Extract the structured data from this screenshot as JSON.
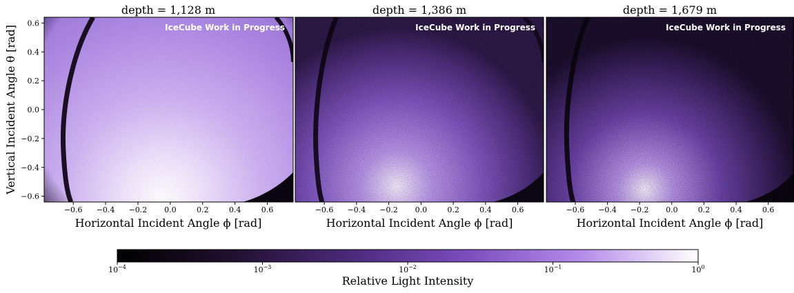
{
  "chart_data": {
    "type": "heatmap",
    "panels": [
      {
        "title": "depth = 1,128 m",
        "watermark": "IceCube Work in Progress",
        "xlabel": "Horizontal Incident Angle ϕ [rad]",
        "ylabel": "Vertical Incident Angle θ [rad]",
        "xlim": [
          -0.78,
          0.76
        ],
        "ylim": [
          -0.64,
          0.64
        ],
        "xticks": [
          "−0.6",
          "−0.4",
          "−0.2",
          "0.0",
          "0.2",
          "0.4",
          "0.6"
        ],
        "yticks": [
          "−0.6",
          "−0.4",
          "−0.2",
          "0.0",
          "0.2",
          "0.4",
          "0.6"
        ],
        "peak_x": -0.12,
        "peak_y": -0.55,
        "background_intensity": 0.3
      },
      {
        "title": "depth = 1,386 m",
        "watermark": "IceCube Work in Progress",
        "xlabel": "Horizontal Incident Angle ϕ [rad]",
        "xlim": [
          -0.78,
          0.76
        ],
        "ylim": [
          -0.64,
          0.64
        ],
        "xticks": [
          "−0.6",
          "−0.4",
          "−0.2",
          "0.0",
          "0.2",
          "0.4",
          "0.6"
        ],
        "peak_x": -0.18,
        "peak_y": -0.45,
        "background_intensity": 0.03
      },
      {
        "title": "depth = 1,679 m",
        "watermark": "IceCube Work in Progress",
        "xlabel": "Horizontal Incident Angle ϕ [rad]",
        "xlim": [
          -0.78,
          0.76
        ],
        "ylim": [
          -0.64,
          0.64
        ],
        "xticks": [
          "−0.6",
          "−0.4",
          "−0.2",
          "0.0",
          "0.2",
          "0.4",
          "0.6"
        ],
        "peak_x": -0.22,
        "peak_y": -0.45,
        "background_intensity": 0.01
      }
    ],
    "colorbar": {
      "label": "Relative Light Intensity",
      "scale": "log",
      "range": [
        0.0001,
        1
      ],
      "ticks": [
        {
          "base": "10",
          "exp": "−4"
        },
        {
          "base": "10",
          "exp": "−3"
        },
        {
          "base": "10",
          "exp": "−2"
        },
        {
          "base": "10",
          "exp": "−1"
        },
        {
          "base": "10",
          "exp": "0"
        }
      ],
      "colormap": [
        "#000000",
        "#3b1c58",
        "#6d3fa4",
        "#a67ce1",
        "#d9c3f7",
        "#ffffff"
      ]
    }
  }
}
